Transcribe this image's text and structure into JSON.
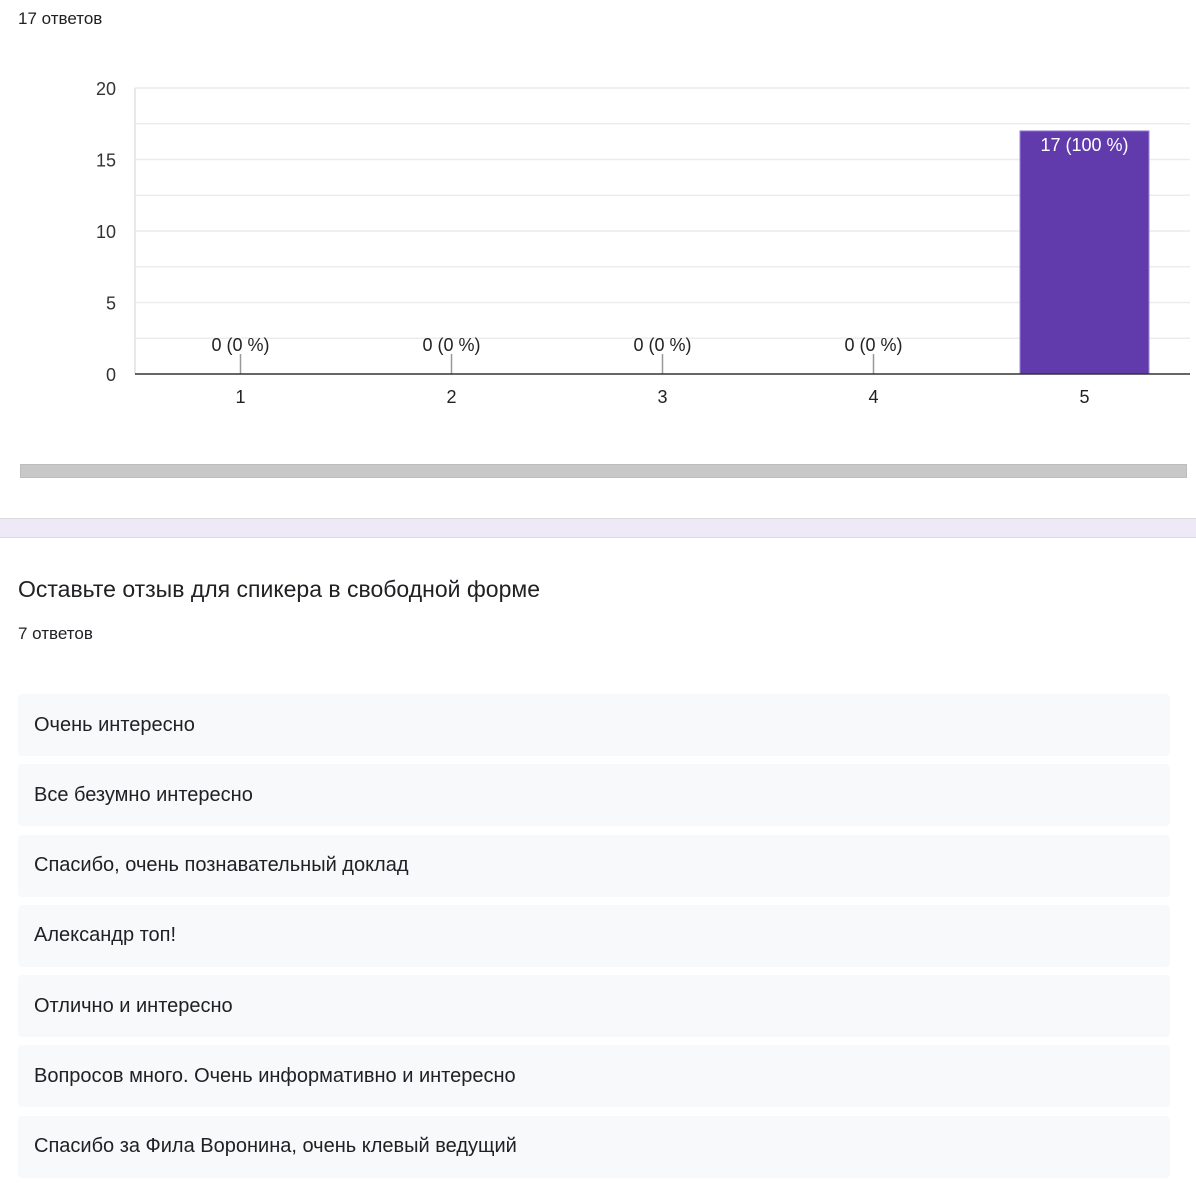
{
  "summary": {
    "response_count_label": "17 ответов"
  },
  "chart_data": {
    "type": "bar",
    "categories": [
      "1",
      "2",
      "3",
      "4",
      "5"
    ],
    "values": [
      0,
      0,
      0,
      0,
      17
    ],
    "data_labels": [
      "0 (0 %)",
      "0 (0 %)",
      "0 (0 %)",
      "0 (0 %)",
      "17 (100 %)"
    ],
    "yticks": [
      0,
      5,
      10,
      15,
      20
    ],
    "ylim": [
      0,
      20
    ],
    "grid": true,
    "bar_color": "#613aac",
    "title": "",
    "xlabel": "",
    "ylabel": ""
  },
  "question": {
    "title": "Оставьте отзыв для спикера в свободной форме",
    "response_count_label": "7 ответов",
    "responses": [
      "Очень интересно",
      "Все безумно интересно",
      "Спасибо, очень познавательный доклад",
      "Александр топ!",
      "Отлично и интересно",
      "Вопросов много. Очень информативно и интересно",
      "Спасибо за Фила Воронина, очень клевый ведущий"
    ]
  }
}
